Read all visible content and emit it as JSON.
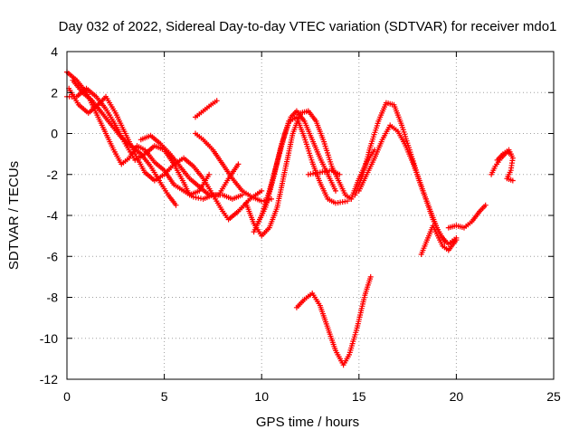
{
  "chart_data": {
    "type": "scatter",
    "title": "Day 032 of 2022, Sidereal Day-to-day VTEC variation (SDTVAR) for receiver mdo1",
    "xlabel": "GPS time / hours",
    "ylabel": "SDTVAR / TECUs",
    "xlim": [
      0,
      25
    ],
    "ylim": [
      -12,
      4
    ],
    "xticks": [
      0,
      5,
      10,
      15,
      20,
      25
    ],
    "yticks": [
      -12,
      -10,
      -8,
      -6,
      -4,
      -2,
      0,
      2,
      4
    ],
    "grid": true,
    "marker": "+",
    "color": "#ff0000",
    "series": [
      {
        "name": "track-1",
        "points": [
          [
            0.0,
            3.0
          ],
          [
            0.5,
            2.6
          ],
          [
            1.0,
            2.0
          ],
          [
            1.5,
            1.0
          ],
          [
            2.0,
            0.0
          ],
          [
            2.4,
            -0.8
          ],
          [
            2.8,
            -1.5
          ],
          [
            3.2,
            -1.2
          ],
          [
            3.6,
            -0.6
          ],
          [
            4.0,
            -0.8
          ],
          [
            4.5,
            -1.4
          ],
          [
            5.0,
            -1.8
          ],
          [
            5.5,
            -2.5
          ],
          [
            6.0,
            -2.8
          ],
          [
            6.5,
            -3.1
          ],
          [
            7.0,
            -3.2
          ],
          [
            7.5,
            -3.0
          ],
          [
            8.0,
            -3.0
          ],
          [
            8.5,
            -3.2
          ],
          [
            9.0,
            -3.0
          ]
        ]
      },
      {
        "name": "track-2",
        "points": [
          [
            0.1,
            2.2
          ],
          [
            0.6,
            1.4
          ],
          [
            1.1,
            1.0
          ],
          [
            1.6,
            1.4
          ],
          [
            2.0,
            1.8
          ],
          [
            2.5,
            1.0
          ],
          [
            3.0,
            0.0
          ],
          [
            3.5,
            -1.0
          ],
          [
            4.0,
            -1.9
          ],
          [
            4.5,
            -2.3
          ],
          [
            5.0,
            -2.0
          ],
          [
            5.5,
            -1.5
          ],
          [
            6.0,
            -1.2
          ],
          [
            6.5,
            -1.6
          ],
          [
            7.0,
            -2.2
          ],
          [
            7.5,
            -3.0
          ],
          [
            8.0,
            -3.8
          ],
          [
            8.3,
            -4.2
          ],
          [
            8.8,
            -3.8
          ],
          [
            9.4,
            -3.2
          ],
          [
            10.0,
            -2.8
          ]
        ]
      },
      {
        "name": "track-3",
        "points": [
          [
            0.3,
            2.6
          ],
          [
            0.8,
            2.0
          ],
          [
            1.3,
            1.6
          ],
          [
            1.8,
            1.0
          ],
          [
            2.3,
            0.4
          ],
          [
            2.8,
            -0.2
          ],
          [
            3.3,
            -0.6
          ],
          [
            3.8,
            -1.0
          ],
          [
            4.3,
            -1.6
          ],
          [
            4.8,
            -2.4
          ],
          [
            5.2,
            -3.0
          ],
          [
            5.6,
            -3.5
          ]
        ]
      },
      {
        "name": "track-4",
        "points": [
          [
            0.0,
            1.8
          ],
          [
            0.5,
            1.8
          ],
          [
            1.0,
            2.2
          ],
          [
            1.5,
            1.8
          ],
          [
            2.0,
            1.2
          ],
          [
            2.5,
            0.4
          ],
          [
            3.0,
            -0.5
          ],
          [
            3.5,
            -1.3
          ],
          [
            4.0,
            -1.0
          ],
          [
            4.5,
            -0.6
          ],
          [
            5.0,
            -0.8
          ],
          [
            5.5,
            -1.5
          ],
          [
            6.0,
            -2.4
          ],
          [
            6.3,
            -3.0
          ],
          [
            6.8,
            -2.8
          ],
          [
            7.3,
            -2.0
          ]
        ]
      },
      {
        "name": "track-5",
        "points": [
          [
            3.8,
            -0.3
          ],
          [
            4.3,
            -0.1
          ],
          [
            4.8,
            -0.5
          ],
          [
            5.3,
            -1.0
          ],
          [
            5.8,
            -1.6
          ],
          [
            6.3,
            -2.2
          ],
          [
            6.8,
            -2.6
          ],
          [
            7.3,
            -3.0
          ],
          [
            7.8,
            -3.0
          ],
          [
            8.3,
            -2.2
          ],
          [
            8.8,
            -1.5
          ]
        ]
      },
      {
        "name": "track-6",
        "points": [
          [
            6.6,
            0.0
          ],
          [
            7.0,
            -0.3
          ],
          [
            7.5,
            -0.8
          ],
          [
            8.0,
            -1.5
          ],
          [
            8.5,
            -2.2
          ],
          [
            9.0,
            -2.8
          ],
          [
            9.5,
            -3.1
          ],
          [
            10.0,
            -3.3
          ],
          [
            10.5,
            -3.2
          ]
        ]
      },
      {
        "name": "track-7",
        "points": [
          [
            6.6,
            0.8
          ],
          [
            7.0,
            1.1
          ],
          [
            7.4,
            1.4
          ],
          [
            7.7,
            1.6
          ]
        ]
      },
      {
        "name": "track-8",
        "points": [
          [
            9.2,
            -3.4
          ],
          [
            9.6,
            -4.4
          ],
          [
            10.0,
            -5.0
          ],
          [
            10.4,
            -4.6
          ],
          [
            10.8,
            -3.6
          ],
          [
            11.2,
            -1.8
          ],
          [
            11.6,
            0.0
          ],
          [
            12.0,
            1.0
          ],
          [
            12.4,
            1.1
          ],
          [
            12.8,
            0.6
          ],
          [
            13.2,
            -0.4
          ],
          [
            13.6,
            -1.6
          ],
          [
            14.0,
            -2.4
          ],
          [
            14.3,
            -3.0
          ],
          [
            14.6,
            -3.2
          ]
        ]
      },
      {
        "name": "track-9",
        "points": [
          [
            9.6,
            -4.8
          ],
          [
            10.0,
            -4.0
          ],
          [
            10.4,
            -2.8
          ],
          [
            10.8,
            -1.4
          ],
          [
            11.2,
            0.0
          ],
          [
            11.5,
            0.8
          ],
          [
            11.8,
            1.1
          ],
          [
            12.2,
            0.6
          ],
          [
            12.6,
            -0.3
          ],
          [
            13.0,
            -1.2
          ],
          [
            13.4,
            -2.0
          ],
          [
            13.8,
            -2.8
          ]
        ]
      },
      {
        "name": "track-10",
        "points": [
          [
            9.8,
            -4.4
          ],
          [
            10.2,
            -3.6
          ],
          [
            10.6,
            -2.2
          ],
          [
            11.0,
            -0.6
          ],
          [
            11.4,
            0.6
          ],
          [
            11.8,
            0.8
          ],
          [
            12.2,
            -0.2
          ],
          [
            12.6,
            -1.4
          ],
          [
            13.0,
            -2.4
          ],
          [
            13.4,
            -3.2
          ],
          [
            13.8,
            -3.4
          ],
          [
            14.4,
            -3.3
          ]
        ]
      },
      {
        "name": "track-11",
        "points": [
          [
            12.4,
            -2.0
          ],
          [
            13.0,
            -1.9
          ],
          [
            13.6,
            -1.8
          ],
          [
            14.0,
            -2.0
          ]
        ]
      },
      {
        "name": "track-12",
        "points": [
          [
            14.8,
            -3.0
          ],
          [
            15.2,
            -2.0
          ],
          [
            15.6,
            -0.6
          ],
          [
            16.0,
            0.6
          ],
          [
            16.4,
            1.5
          ],
          [
            16.8,
            1.4
          ],
          [
            17.2,
            0.4
          ],
          [
            17.6,
            -0.8
          ],
          [
            18.0,
            -2.0
          ],
          [
            18.4,
            -3.1
          ],
          [
            18.8,
            -4.2
          ],
          [
            19.2,
            -5.0
          ],
          [
            19.6,
            -5.4
          ],
          [
            20.0,
            -5.1
          ]
        ]
      },
      {
        "name": "track-13",
        "points": [
          [
            15.0,
            -2.8
          ],
          [
            15.4,
            -2.0
          ],
          [
            15.8,
            -1.2
          ],
          [
            16.2,
            -0.3
          ],
          [
            16.6,
            0.4
          ],
          [
            17.0,
            0.1
          ],
          [
            17.4,
            -0.6
          ],
          [
            17.8,
            -1.5
          ],
          [
            18.2,
            -2.6
          ],
          [
            18.6,
            -3.6
          ],
          [
            19.0,
            -4.6
          ],
          [
            19.4,
            -5.3
          ]
        ]
      },
      {
        "name": "track-14",
        "points": [
          [
            14.6,
            -3.2
          ],
          [
            15.0,
            -2.2
          ],
          [
            15.4,
            -1.4
          ],
          [
            15.8,
            -0.8
          ]
        ]
      },
      {
        "name": "track-15",
        "points": [
          [
            18.2,
            -5.9
          ],
          [
            18.5,
            -5.2
          ],
          [
            18.8,
            -4.5
          ],
          [
            19.0,
            -4.9
          ],
          [
            19.3,
            -5.5
          ],
          [
            19.6,
            -5.7
          ],
          [
            20.0,
            -5.2
          ]
        ]
      },
      {
        "name": "track-16",
        "points": [
          [
            19.6,
            -4.6
          ],
          [
            20.0,
            -4.5
          ],
          [
            20.4,
            -4.6
          ],
          [
            20.8,
            -4.3
          ],
          [
            21.2,
            -3.8
          ],
          [
            21.5,
            -3.5
          ]
        ]
      },
      {
        "name": "track-17",
        "points": [
          [
            22.1,
            -1.3
          ],
          [
            22.4,
            -1.0
          ],
          [
            22.7,
            -0.8
          ],
          [
            22.9,
            -1.2
          ],
          [
            22.8,
            -1.8
          ],
          [
            22.6,
            -2.2
          ],
          [
            22.9,
            -2.3
          ]
        ]
      },
      {
        "name": "track-18",
        "points": [
          [
            21.8,
            -2.0
          ],
          [
            22.0,
            -1.6
          ],
          [
            22.3,
            -1.2
          ],
          [
            22.6,
            -0.9
          ],
          [
            22.8,
            -1.0
          ]
        ]
      },
      {
        "name": "track-19",
        "points": [
          [
            11.8,
            -8.5
          ],
          [
            12.2,
            -8.1
          ],
          [
            12.6,
            -7.8
          ],
          [
            13.0,
            -8.4
          ],
          [
            13.4,
            -9.5
          ],
          [
            13.8,
            -10.6
          ],
          [
            14.2,
            -11.3
          ],
          [
            14.5,
            -10.8
          ],
          [
            14.9,
            -9.5
          ],
          [
            15.3,
            -7.9
          ],
          [
            15.6,
            -7.0
          ]
        ]
      }
    ]
  }
}
